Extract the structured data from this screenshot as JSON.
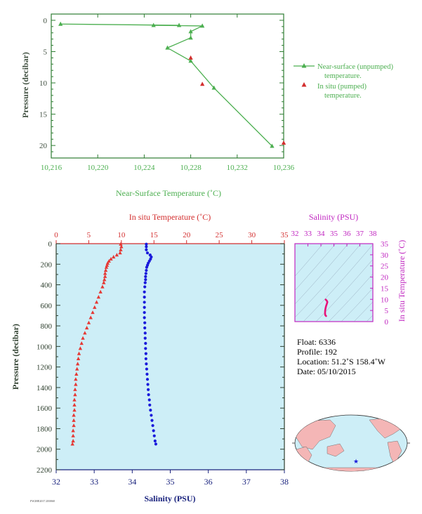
{
  "chart_data": [
    {
      "type": "line",
      "xlabel": "Near-Surface Temperature (˚C)",
      "ylabel": "Pressure (decibar)",
      "xlim": [
        10.216,
        10.236
      ],
      "ylim": [
        22,
        -1
      ],
      "xticks": [
        "10.216",
        "10.220",
        "10.224",
        "10.228",
        "10.232",
        "10.236"
      ],
      "yticks": [
        "0",
        "5",
        "10",
        "15",
        "20"
      ],
      "colors": {
        "axes": "#2e7d32",
        "unpumped": "#4caf50",
        "pumped": "#d32f2f"
      },
      "series": [
        {
          "name": "Near-surface (unpumped)\ntemperature.",
          "marker": "triangle",
          "points": [
            [
              10.2168,
              0.6
            ],
            [
              10.227,
              0.8
            ],
            [
              10.2248,
              0.8
            ],
            [
              10.229,
              0.9
            ],
            [
              10.228,
              1.8
            ],
            [
              10.228,
              2.8
            ],
            [
              10.226,
              4.4
            ],
            [
              10.228,
              6.5
            ],
            [
              10.23,
              10.8
            ],
            [
              10.235,
              20.1
            ]
          ]
        },
        {
          "name": "In situ (pumped)\ntemperature.",
          "marker": "triangle",
          "points": [
            [
              10.228,
              6.0
            ],
            [
              10.229,
              10.2
            ],
            [
              10.236,
              19.6
            ]
          ]
        }
      ]
    },
    {
      "type": "scatter",
      "title_top": "In situ Temperature (˚C)",
      "xlabel": "Salinity (PSU)",
      "ylabel": "Pressure (decibar)",
      "temp_lim": [
        0,
        35
      ],
      "sal_lim": [
        32,
        38
      ],
      "ylim": [
        2200,
        0
      ],
      "temp_ticks": [
        "0",
        "5",
        "10",
        "15",
        "20",
        "25",
        "30",
        "35"
      ],
      "sal_ticks": [
        "32",
        "33",
        "34",
        "35",
        "36",
        "37",
        "38"
      ],
      "pressure_ticks": [
        "0",
        "200",
        "400",
        "600",
        "800",
        "1000",
        "1200",
        "1400",
        "1600",
        "1800",
        "2000",
        "2200"
      ],
      "colors": {
        "temperature": "#e53935",
        "salinity": "#1a1adb",
        "plot_bg": "#cdeef7",
        "temp_axis": "#d32f2f",
        "sal_axis": "#1a237e",
        "p_axis": "#2e3f2e"
      },
      "temperature": [
        [
          9.9,
          5
        ],
        [
          10.0,
          30
        ],
        [
          9.9,
          60
        ],
        [
          9.8,
          90
        ],
        [
          9.3,
          110
        ],
        [
          8.8,
          130
        ],
        [
          8.4,
          150
        ],
        [
          8.1,
          170
        ],
        [
          7.9,
          190
        ],
        [
          7.8,
          210
        ],
        [
          7.7,
          230
        ],
        [
          7.6,
          260
        ],
        [
          7.5,
          290
        ],
        [
          7.5,
          320
        ],
        [
          7.4,
          350
        ],
        [
          7.3,
          380
        ],
        [
          7.1,
          420
        ],
        [
          6.8,
          470
        ],
        [
          6.5,
          520
        ],
        [
          6.2,
          570
        ],
        [
          5.9,
          620
        ],
        [
          5.6,
          670
        ],
        [
          5.3,
          720
        ],
        [
          5.0,
          770
        ],
        [
          4.7,
          820
        ],
        [
          4.4,
          870
        ],
        [
          4.1,
          920
        ],
        [
          3.9,
          970
        ],
        [
          3.7,
          1020
        ],
        [
          3.5,
          1070
        ],
        [
          3.4,
          1120
        ],
        [
          3.3,
          1170
        ],
        [
          3.2,
          1220
        ],
        [
          3.1,
          1270
        ],
        [
          3.0,
          1320
        ],
        [
          3.0,
          1370
        ],
        [
          2.9,
          1420
        ],
        [
          2.9,
          1470
        ],
        [
          2.8,
          1520
        ],
        [
          2.8,
          1570
        ],
        [
          2.8,
          1620
        ],
        [
          2.7,
          1670
        ],
        [
          2.7,
          1720
        ],
        [
          2.7,
          1770
        ],
        [
          2.6,
          1820
        ],
        [
          2.6,
          1870
        ],
        [
          2.6,
          1920
        ],
        [
          2.5,
          1950
        ]
      ],
      "salinity": [
        [
          34.37,
          5
        ],
        [
          34.37,
          30
        ],
        [
          34.37,
          60
        ],
        [
          34.4,
          90
        ],
        [
          34.47,
          110
        ],
        [
          34.5,
          130
        ],
        [
          34.48,
          150
        ],
        [
          34.45,
          170
        ],
        [
          34.42,
          190
        ],
        [
          34.4,
          210
        ],
        [
          34.38,
          230
        ],
        [
          34.37,
          260
        ],
        [
          34.36,
          290
        ],
        [
          34.35,
          320
        ],
        [
          34.35,
          350
        ],
        [
          34.34,
          380
        ],
        [
          34.33,
          420
        ],
        [
          34.32,
          470
        ],
        [
          34.32,
          520
        ],
        [
          34.32,
          570
        ],
        [
          34.32,
          620
        ],
        [
          34.32,
          670
        ],
        [
          34.32,
          720
        ],
        [
          34.33,
          770
        ],
        [
          34.33,
          820
        ],
        [
          34.34,
          870
        ],
        [
          34.34,
          920
        ],
        [
          34.35,
          970
        ],
        [
          34.35,
          1020
        ],
        [
          34.36,
          1070
        ],
        [
          34.36,
          1120
        ],
        [
          34.37,
          1170
        ],
        [
          34.38,
          1220
        ],
        [
          34.39,
          1270
        ],
        [
          34.4,
          1320
        ],
        [
          34.41,
          1370
        ],
        [
          34.42,
          1420
        ],
        [
          34.43,
          1470
        ],
        [
          34.45,
          1520
        ],
        [
          34.46,
          1570
        ],
        [
          34.48,
          1620
        ],
        [
          34.5,
          1670
        ],
        [
          34.52,
          1720
        ],
        [
          34.54,
          1770
        ],
        [
          34.56,
          1820
        ],
        [
          34.58,
          1870
        ],
        [
          34.6,
          1920
        ],
        [
          34.62,
          1950
        ]
      ]
    },
    {
      "type": "scatter",
      "title": "Salinity (PSU)",
      "ylabel": "In situ Temperature (˚C)",
      "xlim": [
        32,
        38
      ],
      "ylim": [
        0,
        35
      ],
      "xticks": [
        "32",
        "33",
        "34",
        "35",
        "36",
        "37",
        "38"
      ],
      "yticks": [
        "0",
        "5",
        "10",
        "15",
        "20",
        "25",
        "30",
        "35"
      ],
      "colors": {
        "axis": "#c026c0",
        "curve": "#e8127a",
        "bg": "#cdeef7"
      },
      "points": [
        [
          34.4,
          2.5
        ],
        [
          34.33,
          3.0
        ],
        [
          34.32,
          4.0
        ],
        [
          34.33,
          5.0
        ],
        [
          34.36,
          6.0
        ],
        [
          34.4,
          7.0
        ],
        [
          34.46,
          8.0
        ],
        [
          34.5,
          8.8
        ],
        [
          34.45,
          9.4
        ],
        [
          34.37,
          9.9
        ]
      ]
    }
  ],
  "info": {
    "float": "Float:  6336",
    "profile": "Profile:  192",
    "location": "Location:  51.2˚S  158.4˚W",
    "date": "Date:  05/10/2015"
  },
  "map": {
    "land": "#f4b6b6",
    "ocean": "#cdeef7",
    "marker": "★",
    "marker_color": "#1a1adb"
  },
  "footer": "FW2HE2017.2E0068"
}
